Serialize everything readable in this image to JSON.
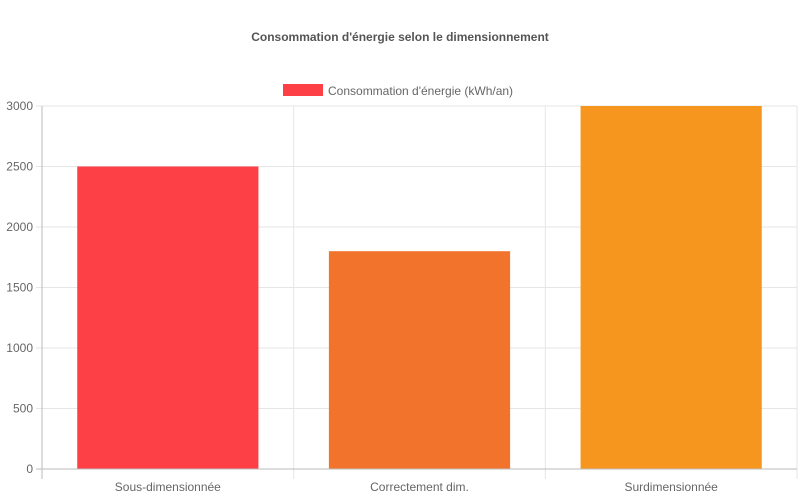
{
  "chart_data": {
    "type": "bar",
    "title": "Consommation d'énergie selon le dimensionnement",
    "categories": [
      "Sous-dimensionnée",
      "Correctement dim.",
      "Surdimensionnée"
    ],
    "series": [
      {
        "name": "Consommation d'énergie (kWh/an)",
        "values": [
          2500,
          1800,
          3000
        ]
      }
    ],
    "bar_colors": [
      "#fc4046",
      "#f1732c",
      "#f7961f"
    ],
    "legend_color": "#fc4046",
    "ylim": [
      0,
      3000
    ],
    "yticks": [
      0,
      500,
      1000,
      1500,
      2000,
      2500,
      3000
    ],
    "grid": true,
    "legend_position": "top"
  }
}
